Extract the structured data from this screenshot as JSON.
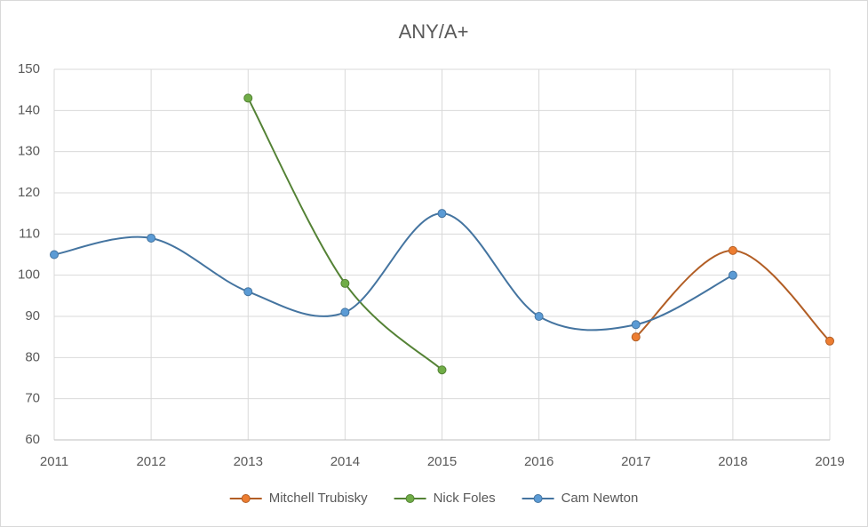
{
  "chart_data": {
    "type": "line",
    "title": "ANY/A+",
    "x": [
      2011,
      2012,
      2013,
      2014,
      2015,
      2016,
      2017,
      2018,
      2019
    ],
    "xlim": [
      2011,
      2019
    ],
    "xticks": [
      2011,
      2012,
      2013,
      2014,
      2015,
      2016,
      2017,
      2018,
      2019
    ],
    "ylim": [
      60,
      150
    ],
    "yticks": [
      60,
      70,
      80,
      90,
      100,
      110,
      120,
      130,
      140,
      150
    ],
    "grid": true,
    "smooth": true,
    "legend": "bottom",
    "series": [
      {
        "name": "Mitchell Trubisky",
        "color": "#ed7d31",
        "values": [
          null,
          null,
          null,
          null,
          null,
          null,
          85,
          106,
          84
        ]
      },
      {
        "name": "Nick Foles",
        "color": "#70ad47",
        "values": [
          null,
          null,
          143,
          98,
          77,
          null,
          null,
          null,
          null
        ]
      },
      {
        "name": "Cam Newton",
        "color": "#5b9bd5",
        "values": [
          105,
          109,
          96,
          91,
          115,
          90,
          88,
          100,
          null
        ]
      }
    ]
  }
}
